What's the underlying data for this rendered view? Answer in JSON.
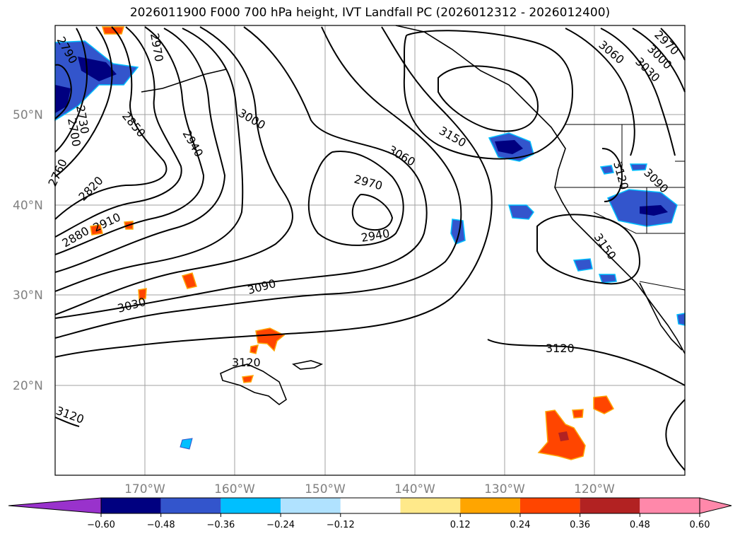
{
  "title": "2026011900 F000 700 hPa height, IVT Landfall PC (2026012312 - 2026012400)",
  "latitude_labels": [
    "50°N",
    "40°N",
    "30°N",
    "20°N"
  ],
  "longitude_labels": [
    "170°W",
    "160°W",
    "150°W",
    "140°W",
    "130°W",
    "120°W"
  ],
  "contour_labels": [
    "2790",
    "2730",
    "2700",
    "2760",
    "2820",
    "2880",
    "2910",
    "3030",
    "3090",
    "3120",
    "3120",
    "3120",
    "2850",
    "2940",
    "2970",
    "3000",
    "2970",
    "2940",
    "3060",
    "3150",
    "3060",
    "3030",
    "3000",
    "2970",
    "3120",
    "3090",
    "3150"
  ],
  "colorbar": {
    "ticks": [
      "−0.60",
      "−0.48",
      "−0.36",
      "−0.24",
      "−0.12",
      "0.12",
      "0.24",
      "0.36",
      "0.48",
      "0.60"
    ],
    "colors": {
      "under": "#9932cc",
      "bins": [
        "#000080",
        "#3355cc",
        "#00bfff",
        "#b0e2ff",
        "#ffffff",
        "#ffe98a",
        "#ffa500",
        "#ff4500",
        "#b22222",
        "#ff88aa"
      ],
      "over": "#ff88aa"
    }
  },
  "fill_colors": {
    "strong_negative": "#000080",
    "mid_negative": "#3355cc",
    "weak_negative": "#00bfff",
    "weak_positive": "#ffa500",
    "mid_positive": "#ff4500",
    "strong_positive": "#b22222"
  }
}
